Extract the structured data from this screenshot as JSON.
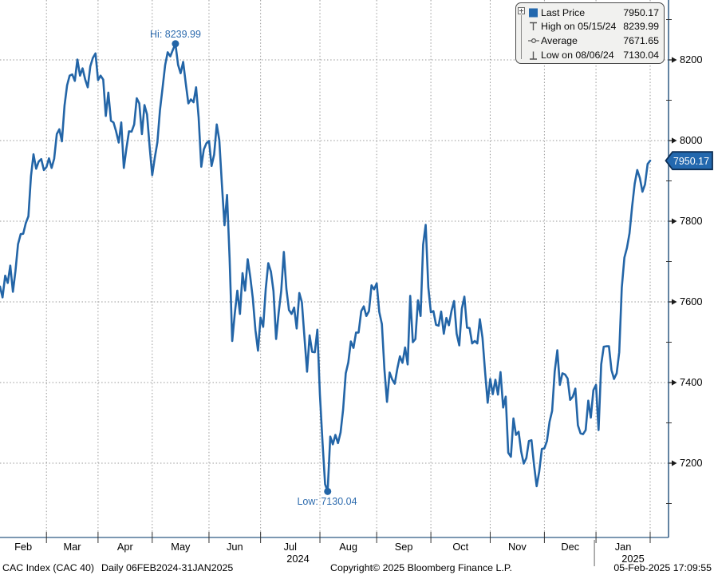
{
  "legend": {
    "rows": [
      {
        "icon": "last-price-square",
        "label": "Last Price",
        "value": "7950.17"
      },
      {
        "icon": "high-whisker",
        "label": "High on 05/15/24",
        "value": "8239.99"
      },
      {
        "icon": "average-marker",
        "label": "Average",
        "value": "7671.65"
      },
      {
        "icon": "low-whisker",
        "label": "Low on 08/06/24",
        "value": "7130.04"
      }
    ]
  },
  "annotations": {
    "high": "Hi: 8239.99",
    "low": "Low: 7130.04"
  },
  "last_price_tag": "7950.17",
  "status_bar": {
    "security": "CAC Index (CAC 40)",
    "range": "Daily 06FEB2024-31JAN2025",
    "copyright": "Copyright© 2025 Bloomberg Finance L.P.",
    "timestamp": "05-Feb-2025 17:09:55"
  },
  "colors": {
    "line": "#2365a7",
    "annotation_text": "#2d6bae",
    "grid": "#999999",
    "axis": "#2f5a84",
    "tick": "#1a1a1a",
    "tag_fill": "#2368ae",
    "tag_border": "#0e2f55",
    "legend_bg": "#f1f1ef"
  },
  "chart_data": {
    "type": "line",
    "title": "CAC Index (CAC 40) Daily 06FEB2024-31JAN2025",
    "xlabel": "",
    "ylabel": "",
    "x_start_date": "2024-02-06",
    "x_end_date": "2025-01-31",
    "ylim_labeled": [
      7200,
      8200
    ],
    "y_major_ticks": [
      8200,
      8000,
      7800,
      7600,
      7400,
      7200
    ],
    "y_minor_ticks": [
      8300,
      8100,
      7900,
      7700,
      7500,
      7300,
      7100
    ],
    "grid": "dotted",
    "legend_position": "top-right",
    "months": [
      "Feb",
      "Mar",
      "Apr",
      "May",
      "Jun",
      "Jul",
      "Aug",
      "Sep",
      "Oct",
      "Nov",
      "Dec",
      "Jan"
    ],
    "years": [
      "2024",
      "2025"
    ],
    "month_start_indices": [
      0,
      18,
      38,
      59,
      81,
      101,
      124,
      146,
      167,
      190,
      211,
      231
    ],
    "high": {
      "index": 68,
      "value": 8239.99,
      "date": "05/15/24"
    },
    "low": {
      "index": 127,
      "value": 7130.04,
      "date": "08/06/24"
    },
    "last": {
      "index": 252,
      "value": 7950.17
    },
    "average": 7671.65,
    "series": [
      {
        "name": "CAC 40 Last Price",
        "values": [
          7638,
          7611,
          7665,
          7647,
          7690,
          7625,
          7677,
          7743,
          7768,
          7769,
          7795,
          7812,
          7911,
          7966,
          7930,
          7948,
          7954,
          7927,
          7934,
          7956,
          7932,
          7955,
          8016,
          8028,
          7998,
          8087,
          8137,
          8161,
          8164,
          8148,
          8201,
          8161,
          8179,
          8152,
          8132,
          8184,
          8205,
          8216,
          8150,
          8161,
          8151,
          8061,
          8119,
          8049,
          8045,
          8023,
          7995,
          8045,
          7932,
          7981,
          8023,
          8022,
          8040,
          8105,
          8092,
          8016,
          8088,
          8065,
          7984,
          7914,
          7957,
          7996,
          8075,
          8131,
          8187,
          8219,
          8209,
          8225,
          8239.99,
          8188,
          8167,
          8195,
          8141,
          8092,
          8102,
          8095,
          8132,
          8057,
          7935,
          7978,
          7993,
          7999,
          7937,
          7965,
          8040,
          8001,
          7893,
          7790,
          7865,
          7708,
          7503,
          7571,
          7628,
          7570,
          7671,
          7628,
          7706,
          7662,
          7609,
          7530,
          7479,
          7561,
          7538,
          7632,
          7696,
          7675,
          7627,
          7508,
          7573,
          7627,
          7724,
          7632,
          7580,
          7570,
          7586,
          7534,
          7622,
          7599,
          7513,
          7427,
          7517,
          7476,
          7475,
          7531,
          7370,
          7251,
          7148,
          7130.04,
          7266,
          7247,
          7270,
          7250,
          7276,
          7333,
          7423,
          7450,
          7502,
          7486,
          7524,
          7524,
          7577,
          7589,
          7565,
          7577,
          7641,
          7631,
          7646,
          7575,
          7545,
          7432,
          7352,
          7425,
          7408,
          7397,
          7435,
          7465,
          7449,
          7487,
          7445,
          7615,
          7500,
          7508,
          7604,
          7565,
          7742,
          7791,
          7636,
          7574,
          7577,
          7543,
          7541,
          7576,
          7521,
          7560,
          7542,
          7578,
          7602,
          7521,
          7492,
          7583,
          7613,
          7536,
          7535,
          7497,
          7503,
          7497,
          7557,
          7511,
          7428,
          7350,
          7409,
          7371,
          7407,
          7370,
          7426,
          7338,
          7365,
          7226,
          7216,
          7311,
          7270,
          7278,
          7229,
          7199,
          7213,
          7255,
          7257,
          7194,
          7143,
          7179,
          7235,
          7237,
          7255,
          7303,
          7330,
          7427,
          7480,
          7394,
          7423,
          7420,
          7410,
          7357,
          7365,
          7385,
          7294,
          7274,
          7272,
          7282,
          7355,
          7313,
          7381,
          7394,
          7282,
          7445,
          7489,
          7490,
          7490,
          7431,
          7409,
          7423,
          7475,
          7635,
          7710,
          7734,
          7770,
          7837,
          7893,
          7927,
          7907,
          7873,
          7891,
          7942,
          7950.17
        ]
      }
    ]
  }
}
